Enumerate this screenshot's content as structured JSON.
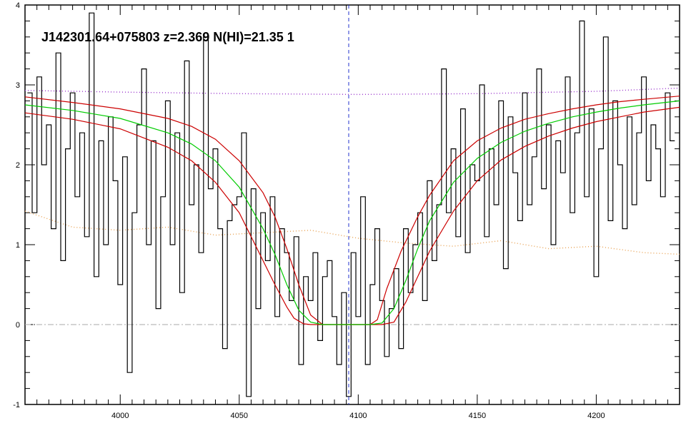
{
  "chart_data": {
    "type": "line",
    "title": "J142301.64+075803 z=2.369 N(HI)=21.35 1",
    "xlabel": "",
    "ylabel": "",
    "xlim": [
      3960,
      4235
    ],
    "ylim": [
      -1,
      4
    ],
    "x_ticks": [
      {
        "value": 4000,
        "label": "4000"
      },
      {
        "value": 4050,
        "label": "4050"
      },
      {
        "value": 4100,
        "label": "4100"
      },
      {
        "value": 4150,
        "label": "4150"
      },
      {
        "value": 4200,
        "label": "4200"
      }
    ],
    "y_ticks": [
      {
        "value": -1,
        "label": "-1"
      },
      {
        "value": 0,
        "label": "0"
      },
      {
        "value": 1,
        "label": "1"
      },
      {
        "value": 2,
        "label": "2"
      },
      {
        "value": 3,
        "label": "3"
      },
      {
        "value": 4,
        "label": "4"
      }
    ],
    "grid": false,
    "legend": "none",
    "line_center": 4096,
    "series": [
      {
        "role": "flux",
        "style": "histogram",
        "color": "#000000",
        "x": [
          3962,
          3964,
          3966,
          3968,
          3970,
          3972,
          3974,
          3976,
          3978,
          3980,
          3982,
          3984,
          3986,
          3988,
          3990,
          3992,
          3994,
          3996,
          3998,
          4000,
          4002,
          4004,
          4006,
          4008,
          4010,
          4012,
          4014,
          4016,
          4018,
          4020,
          4022,
          4024,
          4026,
          4028,
          4030,
          4032,
          4034,
          4036,
          4038,
          4040,
          4042,
          4044,
          4046,
          4048,
          4050,
          4052,
          4054,
          4056,
          4058,
          4060,
          4062,
          4064,
          4066,
          4068,
          4070,
          4072,
          4074,
          4076,
          4078,
          4080,
          4082,
          4084,
          4086,
          4088,
          4090,
          4092,
          4094,
          4096,
          4098,
          4100,
          4102,
          4104,
          4106,
          4108,
          4110,
          4112,
          4114,
          4116,
          4118,
          4120,
          4122,
          4124,
          4126,
          4128,
          4130,
          4132,
          4134,
          4136,
          4138,
          4140,
          4142,
          4144,
          4146,
          4148,
          4150,
          4152,
          4154,
          4156,
          4158,
          4160,
          4162,
          4164,
          4166,
          4168,
          4170,
          4172,
          4174,
          4176,
          4178,
          4180,
          4182,
          4184,
          4186,
          4188,
          4190,
          4192,
          4194,
          4196,
          4198,
          4200,
          4202,
          4204,
          4206,
          4208,
          4210,
          4212,
          4214,
          4216,
          4218,
          4220,
          4222,
          4224,
          4226,
          4228,
          4230,
          4232
        ],
        "values": [
          2.9,
          1.4,
          3.1,
          2.0,
          2.5,
          1.2,
          3.4,
          0.8,
          2.2,
          2.9,
          1.6,
          2.4,
          1.1,
          3.9,
          0.6,
          2.3,
          1.0,
          2.6,
          1.8,
          0.5,
          2.1,
          -0.6,
          1.4,
          2.5,
          3.2,
          1.0,
          2.3,
          0.2,
          1.6,
          2.8,
          1.0,
          2.4,
          0.4,
          3.3,
          1.5,
          2.0,
          0.9,
          3.6,
          1.7,
          2.2,
          1.2,
          -0.3,
          1.3,
          1.5,
          1.6,
          2.4,
          -0.9,
          1.7,
          0.2,
          1.4,
          0.8,
          1.6,
          0.1,
          1.2,
          0.9,
          0.3,
          1.1,
          -0.5,
          0.6,
          0.3,
          0.9,
          -0.2,
          0.6,
          0.8,
          0.1,
          -0.5,
          0.4,
          -0.9,
          0.9,
          0.1,
          1.6,
          -0.5,
          0.5,
          1.2,
          0.3,
          -0.4,
          0.2,
          0.7,
          -0.3,
          1.2,
          0.4,
          1.0,
          1.4,
          0.3,
          1.8,
          0.8,
          1.5,
          3.2,
          1.4,
          2.2,
          1.1,
          2.7,
          0.9,
          2.0,
          1.8,
          3.0,
          1.1,
          2.2,
          1.5,
          2.8,
          0.7,
          2.6,
          1.9,
          1.3,
          2.9,
          1.5,
          2.1,
          3.2,
          1.7,
          2.5,
          1.0,
          2.3,
          1.9,
          3.1,
          1.4,
          2.4,
          3.8,
          1.6,
          2.7,
          0.6,
          2.2,
          3.6,
          1.3,
          2.8,
          2.0,
          1.2,
          2.6,
          1.5,
          2.4,
          3.1,
          1.8,
          2.5,
          2.2,
          1.6,
          2.9,
          2.3
        ]
      },
      {
        "role": "model",
        "style": "line",
        "color": "#00cc00",
        "x": [
          3960,
          3980,
          4000,
          4020,
          4030,
          4040,
          4050,
          4060,
          4065,
          4070,
          4075,
          4080,
          4085,
          4090,
          4100,
          4105,
          4110,
          4115,
          4120,
          4125,
          4130,
          4140,
          4150,
          4160,
          4170,
          4180,
          4190,
          4200,
          4210,
          4220,
          4235
        ],
        "values": [
          2.75,
          2.68,
          2.58,
          2.4,
          2.26,
          2.05,
          1.72,
          1.2,
          0.88,
          0.5,
          0.18,
          0.03,
          0.0,
          0.0,
          0.0,
          0.0,
          0.02,
          0.2,
          0.55,
          0.95,
          1.3,
          1.78,
          2.08,
          2.28,
          2.42,
          2.52,
          2.6,
          2.66,
          2.71,
          2.75,
          2.8
        ]
      },
      {
        "role": "model-upper",
        "style": "line",
        "color": "#cc0000",
        "x": [
          3960,
          3980,
          4000,
          4020,
          4030,
          4040,
          4050,
          4060,
          4065,
          4070,
          4075,
          4080,
          4085,
          4090,
          4100,
          4105,
          4108,
          4112,
          4118,
          4125,
          4130,
          4140,
          4150,
          4160,
          4170,
          4180,
          4190,
          4200,
          4210,
          4220,
          4235
        ],
        "values": [
          2.85,
          2.78,
          2.7,
          2.58,
          2.48,
          2.32,
          2.05,
          1.65,
          1.35,
          0.95,
          0.5,
          0.12,
          0.0,
          0.0,
          0.0,
          0.0,
          0.06,
          0.45,
          0.92,
          1.35,
          1.62,
          2.05,
          2.3,
          2.46,
          2.57,
          2.64,
          2.7,
          2.75,
          2.79,
          2.82,
          2.86
        ]
      },
      {
        "role": "model-lower",
        "style": "line",
        "color": "#cc0000",
        "x": [
          3960,
          3980,
          4000,
          4020,
          4030,
          4040,
          4050,
          4060,
          4065,
          4070,
          4073,
          4077,
          4080,
          4085,
          4100,
          4110,
          4115,
          4120,
          4125,
          4130,
          4140,
          4150,
          4160,
          4170,
          4180,
          4190,
          4200,
          4210,
          4220,
          4235
        ],
        "values": [
          2.65,
          2.57,
          2.45,
          2.22,
          2.05,
          1.78,
          1.4,
          0.8,
          0.5,
          0.22,
          0.08,
          0.01,
          0.0,
          0.0,
          0.0,
          0.0,
          0.03,
          0.28,
          0.6,
          0.92,
          1.42,
          1.8,
          2.06,
          2.23,
          2.36,
          2.46,
          2.54,
          2.6,
          2.66,
          2.72
        ]
      },
      {
        "role": "continuum",
        "style": "dotted",
        "color": "#9933cc",
        "x": [
          3960,
          4000,
          4050,
          4100,
          4150,
          4200,
          4235
        ],
        "values": [
          2.93,
          2.91,
          2.89,
          2.88,
          2.89,
          2.92,
          2.96
        ]
      },
      {
        "role": "error",
        "style": "dotted",
        "color": "#e8a050",
        "x": [
          3960,
          3980,
          4000,
          4020,
          4040,
          4060,
          4080,
          4100,
          4120,
          4140,
          4160,
          4180,
          4200,
          4220,
          4235
        ],
        "values": [
          1.42,
          1.22,
          1.18,
          1.22,
          1.12,
          1.15,
          1.18,
          1.08,
          1.02,
          0.98,
          1.05,
          0.95,
          0.98,
          0.9,
          0.88
        ]
      },
      {
        "role": "zero-level",
        "style": "dashdot",
        "color": "#aaaaaa",
        "x": [
          3960,
          4235
        ],
        "values": [
          0,
          0
        ]
      }
    ]
  }
}
